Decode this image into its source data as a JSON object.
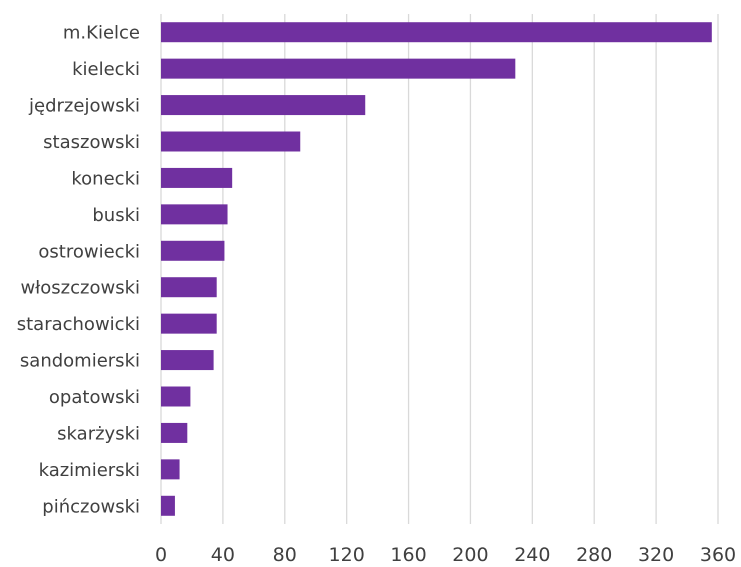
{
  "chart_data": {
    "type": "bar",
    "orientation": "horizontal",
    "title": "",
    "xlabel": "",
    "ylabel": "",
    "categories": [
      "m.Kielce",
      "kielecki",
      "jędrzejowski",
      "staszowski",
      "konecki",
      "buski",
      "ostrowiecki",
      "włoszczowski",
      "starachowicki",
      "sandomierski",
      "opatowski",
      "skarżyski",
      "kazimierski",
      "pińczowski"
    ],
    "values": [
      356,
      229,
      132,
      90,
      46,
      43,
      41,
      36,
      36,
      34,
      19,
      17,
      12,
      9
    ],
    "xlim": [
      0,
      360
    ],
    "xticks": [
      0,
      40,
      80,
      120,
      160,
      200,
      240,
      280,
      320,
      360
    ],
    "grid": "vertical",
    "legend": "none",
    "colors": {
      "bar": "#7030a0",
      "grid": "#d9d9d9",
      "text": "#404040"
    }
  }
}
